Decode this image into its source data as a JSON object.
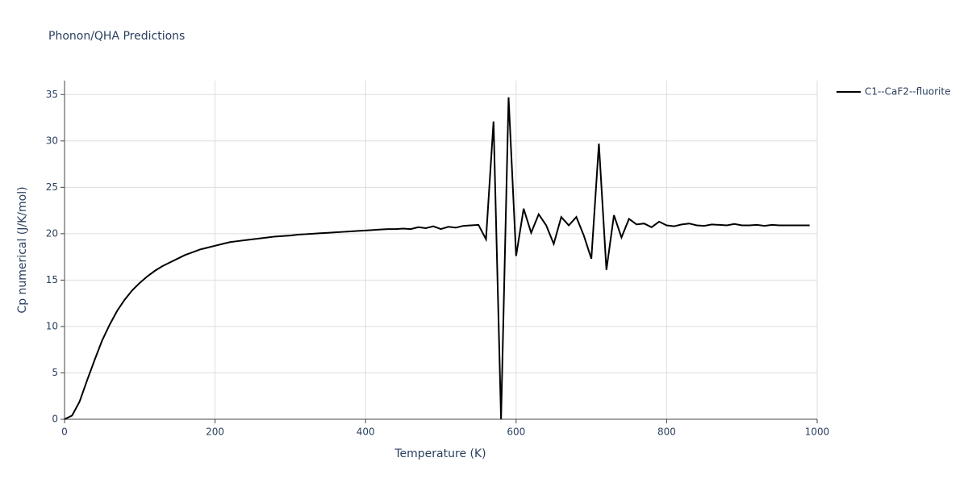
{
  "chart_data": {
    "type": "line",
    "title": "Phonon/QHA Predictions",
    "x_label": "Temperature (K)",
    "y_label": "Cp numerical (J/K/mol)",
    "x": [
      0,
      10,
      20,
      30,
      40,
      50,
      60,
      70,
      80,
      90,
      100,
      110,
      120,
      130,
      140,
      150,
      160,
      170,
      180,
      190,
      200,
      210,
      220,
      230,
      240,
      250,
      260,
      270,
      280,
      290,
      300,
      310,
      320,
      330,
      340,
      350,
      360,
      370,
      380,
      390,
      400,
      410,
      420,
      430,
      440,
      450,
      460,
      470,
      480,
      490,
      500,
      510,
      520,
      530,
      540,
      550,
      560,
      570,
      580,
      590,
      600,
      610,
      620,
      630,
      640,
      650,
      660,
      670,
      680,
      690,
      700,
      710,
      720,
      730,
      740,
      750,
      760,
      770,
      780,
      790,
      800,
      810,
      820,
      830,
      840,
      850,
      860,
      870,
      880,
      890,
      900,
      910,
      920,
      930,
      940,
      950,
      960,
      970,
      980,
      990
    ],
    "series": [
      {
        "name": "C1--CaF2--fluorite",
        "color": "#000000",
        "values": [
          0,
          0.4,
          1.9,
          4.2,
          6.4,
          8.5,
          10.2,
          11.7,
          12.9,
          13.9,
          14.7,
          15.4,
          16.0,
          16.5,
          16.9,
          17.3,
          17.7,
          18.0,
          18.3,
          18.5,
          18.7,
          18.9,
          19.1,
          19.2,
          19.3,
          19.4,
          19.5,
          19.6,
          19.7,
          19.75,
          19.8,
          19.9,
          19.95,
          20.0,
          20.05,
          20.1,
          20.15,
          20.2,
          20.25,
          20.3,
          20.35,
          20.4,
          20.45,
          20.5,
          20.5,
          20.55,
          20.5,
          20.7,
          20.6,
          20.8,
          20.5,
          20.75,
          20.65,
          20.85,
          20.9,
          20.95,
          19.4,
          32.1,
          0,
          34.7,
          17.6,
          22.7,
          20.1,
          22.1,
          20.9,
          18.9,
          21.8,
          20.9,
          21.8,
          19.8,
          17.3,
          29.7,
          16.1,
          22.0,
          19.6,
          21.6,
          21.0,
          21.1,
          20.7,
          21.3,
          20.9,
          20.8,
          21.0,
          21.1,
          20.9,
          20.85,
          21.0,
          20.95,
          20.9,
          21.05,
          20.9,
          20.9,
          20.95,
          20.85,
          20.95,
          20.9,
          20.9,
          20.9,
          20.9,
          20.9
        ]
      }
    ],
    "xlim": [
      0,
      1000
    ],
    "xticks": [
      0,
      200,
      400,
      600,
      800,
      1000
    ],
    "ylim": [
      0,
      36.5
    ],
    "yticks": [
      0,
      5,
      10,
      15,
      20,
      25,
      30,
      35
    ],
    "grid": true,
    "legend": "right"
  }
}
